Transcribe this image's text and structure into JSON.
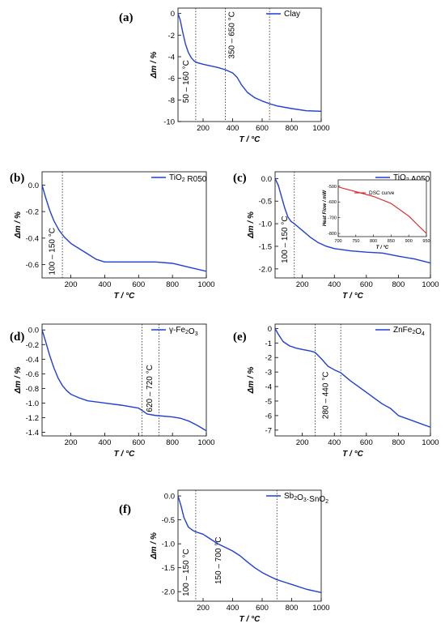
{
  "figure": {
    "accent_color": "#1f3fd6",
    "inset_color": "#e01f1f",
    "grid": false
  },
  "chart_data": [
    {
      "id": "a",
      "panel_label": "(a)",
      "type": "line",
      "xlabel": "T / °C",
      "ylabel": "Δm / %",
      "xlim": [
        30,
        1000
      ],
      "ylim": [
        -10,
        0.5
      ],
      "xticks": [
        200,
        400,
        600,
        800,
        1000
      ],
      "xtick_labels": [
        "200",
        "400",
        "600",
        "800",
        "1000"
      ],
      "yticks": [
        0,
        -2,
        -4,
        -6,
        -8,
        -10
      ],
      "ytick_labels": [
        "0",
        "-2",
        "-4",
        "-6",
        "-8",
        "-10"
      ],
      "legend_placement": "top-right",
      "series": [
        {
          "name": "Clay",
          "color": "#1f3fd6",
          "x": [
            30,
            45,
            60,
            80,
            100,
            120,
            140,
            160,
            200,
            250,
            300,
            350,
            400,
            430,
            460,
            500,
            550,
            600,
            650,
            700,
            800,
            900,
            1000
          ],
          "y": [
            0,
            -0.6,
            -1.6,
            -2.8,
            -3.6,
            -4.1,
            -4.4,
            -4.55,
            -4.7,
            -4.85,
            -5.0,
            -5.2,
            -5.5,
            -5.9,
            -6.6,
            -7.3,
            -7.8,
            -8.1,
            -8.35,
            -8.55,
            -8.8,
            -9.0,
            -9.05
          ]
        }
      ],
      "vlines": [
        150,
        350,
        650
      ],
      "annotations": [
        {
          "text": "50 – 160 °C",
          "x": 100,
          "y": -6.3
        },
        {
          "text": "350 – 650 °C",
          "x": 410,
          "y": -2.0
        }
      ]
    },
    {
      "id": "b",
      "panel_label": "(b)",
      "type": "line",
      "xlabel": "T / °C",
      "ylabel": "Δm / %",
      "xlim": [
        30,
        1000
      ],
      "ylim": [
        -0.7,
        0.1
      ],
      "xticks": [
        200,
        400,
        600,
        800,
        1000
      ],
      "xtick_labels": [
        "200",
        "400",
        "600",
        "800",
        "1000"
      ],
      "yticks": [
        0,
        -0.2,
        -0.4,
        -0.6
      ],
      "ytick_labels": [
        "0.0",
        "-0.2",
        "-0.4",
        "-0.6"
      ],
      "legend_placement": "top-right",
      "series": [
        {
          "name": "TiO₂ R050",
          "color": "#1f3fd6",
          "x": [
            30,
            50,
            75,
            100,
            130,
            160,
            200,
            250,
            300,
            350,
            400,
            500,
            600,
            700,
            800,
            900,
            1000
          ],
          "y": [
            0,
            -0.09,
            -0.19,
            -0.27,
            -0.34,
            -0.39,
            -0.44,
            -0.48,
            -0.52,
            -0.56,
            -0.58,
            -0.58,
            -0.58,
            -0.58,
            -0.59,
            -0.62,
            -0.65
          ]
        }
      ],
      "vlines": [
        150
      ],
      "annotations": [
        {
          "text": "100 – 150 °C",
          "x": 105,
          "y": -0.5
        }
      ]
    },
    {
      "id": "c",
      "panel_label": "(c)",
      "type": "line",
      "xlabel": "T / °C",
      "ylabel": "Δm / %",
      "xlim": [
        30,
        1000
      ],
      "ylim": [
        -2.2,
        0.15
      ],
      "xticks": [
        200,
        400,
        600,
        800,
        1000
      ],
      "xtick_labels": [
        "200",
        "400",
        "600",
        "800",
        "1000"
      ],
      "yticks": [
        0,
        -0.5,
        -1.0,
        -1.5,
        -2.0
      ],
      "ytick_labels": [
        "0.0",
        "-0.5",
        "-1.0",
        "-1.5",
        "-2.0"
      ],
      "legend_placement": "top-right",
      "series": [
        {
          "name": "TiO₂ A050",
          "color": "#1f3fd6",
          "x": [
            30,
            50,
            70,
            90,
            110,
            130,
            150,
            200,
            250,
            300,
            350,
            400,
            500,
            600,
            700,
            800,
            900,
            1000
          ],
          "y": [
            0,
            -0.15,
            -0.4,
            -0.65,
            -0.85,
            -0.95,
            -1.0,
            -1.15,
            -1.3,
            -1.42,
            -1.5,
            -1.55,
            -1.6,
            -1.63,
            -1.65,
            -1.72,
            -1.78,
            -1.87
          ]
        }
      ],
      "vlines": [
        150
      ],
      "annotations": [
        {
          "text": "100 – 150 °C",
          "x": 105,
          "y": -1.35
        }
      ],
      "inset": {
        "type": "line",
        "xlabel": "T / °C",
        "ylabel": "Heat Flow / mW",
        "xlim": [
          700,
          950
        ],
        "ylim": [
          -820,
          -460
        ],
        "xticks": [
          700,
          750,
          800,
          850,
          900,
          950
        ],
        "xtick_labels": [
          "700",
          "750",
          "800",
          "850",
          "900",
          "950"
        ],
        "yticks": [
          -500,
          -600,
          -700,
          -800
        ],
        "ytick_labels": [
          "-500",
          "-600",
          "-700",
          "-800"
        ],
        "series": [
          {
            "name": "DSC curve",
            "color": "#e01f1f",
            "x": [
              700,
              750,
              800,
              850,
              900,
              950
            ],
            "y": [
              -505,
              -535,
              -565,
              -610,
              -690,
              -800
            ]
          }
        ]
      }
    },
    {
      "id": "d",
      "panel_label": "(d)",
      "type": "line",
      "xlabel": "T / °C",
      "ylabel": "Δm / %",
      "xlim": [
        30,
        1000
      ],
      "ylim": [
        -1.45,
        0.08
      ],
      "xticks": [
        200,
        400,
        600,
        800,
        1000
      ],
      "xtick_labels": [
        "200",
        "400",
        "600",
        "800",
        "1000"
      ],
      "yticks": [
        0,
        -0.2,
        -0.4,
        -0.6,
        -0.8,
        -1.0,
        -1.2,
        -1.4
      ],
      "ytick_labels": [
        "0.0",
        "-0.2",
        "-0.4",
        "-0.6",
        "-0.8",
        "-1.0",
        "-1.2",
        "-1.4"
      ],
      "legend_placement": "top-right",
      "series": [
        {
          "name": "γ-Fe₂O₃",
          "color": "#1f3fd6",
          "x": [
            30,
            50,
            75,
            100,
            125,
            150,
            175,
            200,
            250,
            300,
            400,
            500,
            600,
            620,
            650,
            700,
            800,
            850,
            900,
            950,
            1000
          ],
          "y": [
            0,
            -0.15,
            -0.35,
            -0.52,
            -0.66,
            -0.76,
            -0.83,
            -0.88,
            -0.93,
            -0.97,
            -1.0,
            -1.03,
            -1.07,
            -1.1,
            -1.15,
            -1.17,
            -1.19,
            -1.21,
            -1.25,
            -1.31,
            -1.38
          ]
        }
      ],
      "vlines": [
        620,
        720
      ],
      "annotations": [
        {
          "text": "620 – 720 °C",
          "x": 680,
          "y": -0.8
        }
      ]
    },
    {
      "id": "e",
      "panel_label": "(e)",
      "type": "line",
      "xlabel": "T / °C",
      "ylabel": "Δm / %",
      "xlim": [
        30,
        1000
      ],
      "ylim": [
        -7.4,
        0.3
      ],
      "xticks": [
        200,
        400,
        600,
        800,
        1000
      ],
      "xtick_labels": [
        "200",
        "400",
        "600",
        "800",
        "1000"
      ],
      "yticks": [
        0,
        -1,
        -2,
        -3,
        -4,
        -5,
        -6,
        -7
      ],
      "ytick_labels": [
        "0",
        "-1",
        "-2",
        "-3",
        "-4",
        "-5",
        "-6",
        "-7"
      ],
      "legend_placement": "top-right",
      "series": [
        {
          "name": "ZnFe₂O₄",
          "color": "#1f3fd6",
          "x": [
            30,
            50,
            80,
            120,
            160,
            200,
            250,
            280,
            320,
            360,
            400,
            440,
            500,
            550,
            600,
            650,
            700,
            750,
            800,
            900,
            1000
          ],
          "y": [
            0,
            -0.4,
            -0.9,
            -1.2,
            -1.35,
            -1.45,
            -1.55,
            -1.65,
            -2.1,
            -2.6,
            -2.85,
            -3.05,
            -3.6,
            -4.0,
            -4.4,
            -4.8,
            -5.2,
            -5.5,
            -6.0,
            -6.4,
            -6.8
          ]
        }
      ],
      "vlines": [
        280,
        440
      ],
      "annotations": [
        {
          "text": "280 – 440 °C",
          "x": 360,
          "y": -4.6
        }
      ]
    },
    {
      "id": "f",
      "panel_label": "(f)",
      "type": "line",
      "xlabel": "T / °C",
      "ylabel": "Δm / %",
      "xlim": [
        30,
        1000
      ],
      "ylim": [
        -2.2,
        0.12
      ],
      "xticks": [
        200,
        400,
        600,
        800,
        1000
      ],
      "xtick_labels": [
        "200",
        "400",
        "600",
        "800",
        "1000"
      ],
      "yticks": [
        0,
        -0.5,
        -1.0,
        -1.5,
        -2.0
      ],
      "ytick_labels": [
        "0.0",
        "-0.5",
        "-1.0",
        "-1.5",
        "-2.0"
      ],
      "legend_placement": "top-right",
      "series": [
        {
          "name": "Sb₂O₃·SnO₂",
          "color": "#1f3fd6",
          "x": [
            30,
            50,
            70,
            100,
            130,
            150,
            200,
            250,
            300,
            400,
            450,
            500,
            550,
            600,
            650,
            700,
            750,
            800,
            900,
            1000
          ],
          "y": [
            0,
            -0.2,
            -0.45,
            -0.65,
            -0.72,
            -0.75,
            -0.8,
            -0.9,
            -1.0,
            -1.15,
            -1.25,
            -1.38,
            -1.5,
            -1.6,
            -1.68,
            -1.75,
            -1.8,
            -1.85,
            -1.95,
            -2.02
          ]
        }
      ],
      "vlines": [
        150,
        700
      ],
      "annotations": [
        {
          "text": "100 – 150 °C",
          "x": 100,
          "y": -1.6
        },
        {
          "text": "150 – 700 °C",
          "x": 320,
          "y": -1.35
        }
      ]
    }
  ]
}
